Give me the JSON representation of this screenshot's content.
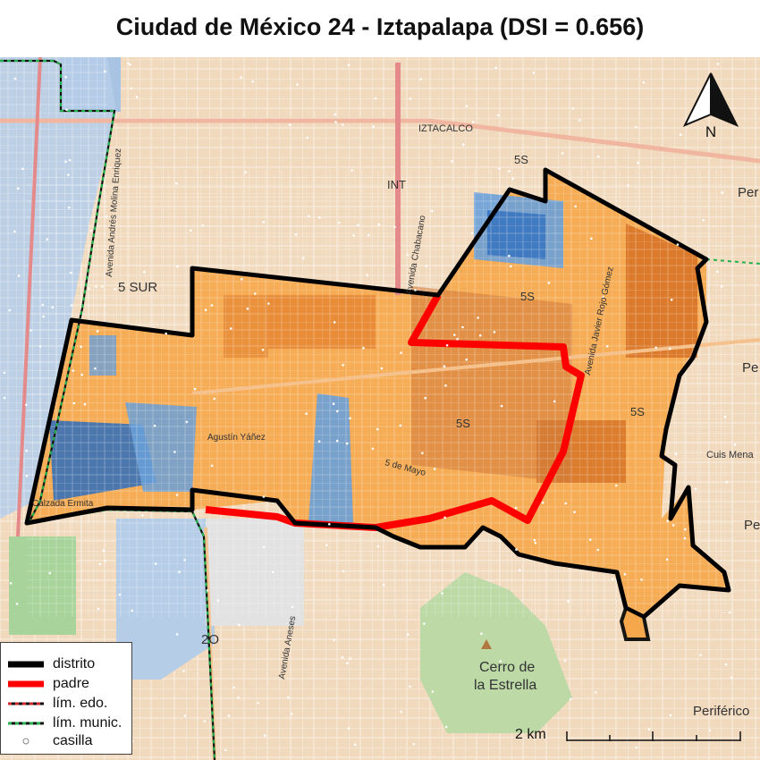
{
  "title": "Ciudad de México 24 - Iztapalapa (DSI = 0.656)",
  "map": {
    "place_labels": [
      "IZTACALCO",
      "Cerro de",
      "la Estrella",
      "5 SUR",
      "5S",
      "5S",
      "5S",
      "5S",
      "INT",
      "2O",
      "Periférico",
      "Per",
      "Pe",
      "Pe",
      "Cuis Mena",
      "Avenida Andrés Molina Enriquez",
      "Avenida Chabacano",
      "Agustín Yáñez",
      "Avenida Javier Rojo Gómez",
      "5 de Mayo",
      "Avenida Aneses",
      "Calzada Ermita"
    ],
    "colors": {
      "district_outline": "#000000",
      "parent_outline": "#ff0000",
      "state_limit": "#cc2a2a",
      "municipal_limit": "#22b14c",
      "orange_fill": "#f7a23e",
      "dark_orange_fill": "#d2691e",
      "blue_fill": "#6aa0d8",
      "dark_blue_fill": "#2d6dbd",
      "park_green": "#b8d9a0",
      "basemap": "#f1d9bd"
    }
  },
  "north_arrow": {
    "label": "N"
  },
  "legend": {
    "items": [
      {
        "label": "distrito",
        "style": "black-thick"
      },
      {
        "label": "padre",
        "style": "red-thick"
      },
      {
        "label": "lím. edo.",
        "style": "red-dashed"
      },
      {
        "label": "lím. munic.",
        "style": "green-dashed"
      },
      {
        "label": "casilla",
        "style": "point"
      }
    ]
  },
  "scale_bar": {
    "label": "2 km"
  }
}
